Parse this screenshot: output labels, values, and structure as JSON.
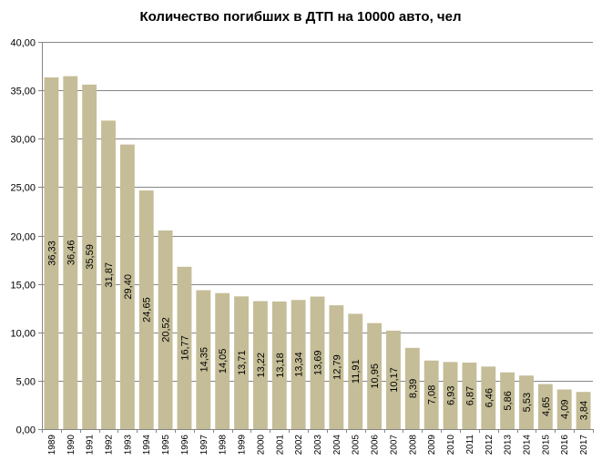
{
  "chart_data": {
    "type": "bar",
    "title": "Количество погибших в ДТП на 10000 авто, чел",
    "xlabel": "",
    "ylabel": "",
    "ylim": [
      0,
      40
    ],
    "yticks": [
      0,
      5,
      10,
      15,
      20,
      25,
      30,
      35,
      40
    ],
    "ytick_labels": [
      "0,00",
      "5,00",
      "10,00",
      "15,00",
      "20,00",
      "25,00",
      "30,00",
      "35,00",
      "40,00"
    ],
    "grid": true,
    "legend": "none",
    "bar_color": "#c4bd97",
    "categories": [
      "1989",
      "1990",
      "1991",
      "1992",
      "1993",
      "1994",
      "1995",
      "1996",
      "1997",
      "1998",
      "1999",
      "2000",
      "2001",
      "2002",
      "2003",
      "2004",
      "2005",
      "2006",
      "2007",
      "2008",
      "2009",
      "2010",
      "2011",
      "2012",
      "2013",
      "2014",
      "2015",
      "2016",
      "2017"
    ],
    "values": [
      36.33,
      36.46,
      35.59,
      31.87,
      29.4,
      24.65,
      20.52,
      16.77,
      14.35,
      14.05,
      13.71,
      13.22,
      13.18,
      13.34,
      13.69,
      12.79,
      11.91,
      10.95,
      10.17,
      8.39,
      7.08,
      6.93,
      6.87,
      6.46,
      5.86,
      5.53,
      4.65,
      4.09,
      3.84
    ],
    "value_labels": [
      "36,33",
      "36,46",
      "35,59",
      "31,87",
      "29,40",
      "24,65",
      "20,52",
      "16,77",
      "14,35",
      "14,05",
      "13,71",
      "13,22",
      "13,18",
      "13,34",
      "13,69",
      "12,79",
      "11,91",
      "10,95",
      "10,17",
      "8,39",
      "7,08",
      "6,93",
      "6,87",
      "6,46",
      "5,86",
      "5,53",
      "4,65",
      "4,09",
      "3,84"
    ]
  }
}
